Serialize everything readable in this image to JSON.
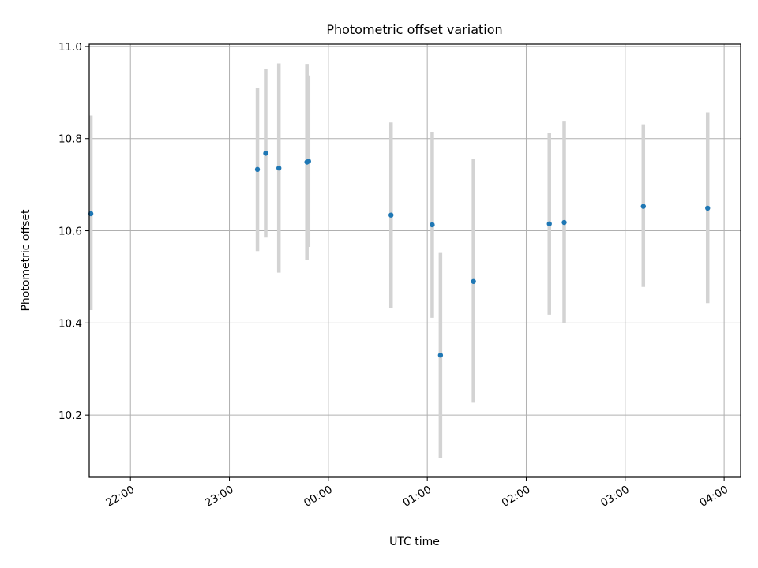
{
  "chart_data": {
    "type": "scatter",
    "title": "Photometric offset variation",
    "xlabel": "UTC time",
    "ylabel": "Photometric offset",
    "xlim": [
      "21:35",
      "04:10"
    ],
    "ylim": [
      10.065,
      11.005
    ],
    "grid": true,
    "colors": {
      "point": "#1f77b4",
      "errorbar": "#d3d3d3",
      "grid": "#b0b0b0"
    },
    "x_ticks": [
      "22:00",
      "23:00",
      "00:00",
      "01:00",
      "02:00",
      "03:00",
      "04:00"
    ],
    "y_ticks": [
      "10.2",
      "10.4",
      "10.6",
      "10.8",
      "11.0"
    ],
    "points": [
      {
        "x": "21:36",
        "y": 10.637,
        "y_low": 10.428,
        "y_high": 10.85
      },
      {
        "x": "23:17",
        "y": 10.733,
        "y_low": 10.556,
        "y_high": 10.91
      },
      {
        "x": "23:22",
        "y": 10.768,
        "y_low": 10.585,
        "y_high": 10.952
      },
      {
        "x": "23:30",
        "y": 10.736,
        "y_low": 10.509,
        "y_high": 10.963
      },
      {
        "x": "23:47",
        "y": 10.749,
        "y_low": 10.536,
        "y_high": 10.962
      },
      {
        "x": "23:48",
        "y": 10.751,
        "y_low": 10.565,
        "y_high": 10.937
      },
      {
        "x": "00:38",
        "y": 10.634,
        "y_low": 10.432,
        "y_high": 10.835
      },
      {
        "x": "01:03",
        "y": 10.613,
        "y_low": 10.411,
        "y_high": 10.815
      },
      {
        "x": "01:08",
        "y": 10.33,
        "y_low": 10.107,
        "y_high": 10.552
      },
      {
        "x": "01:28",
        "y": 10.49,
        "y_low": 10.227,
        "y_high": 10.755
      },
      {
        "x": "02:14",
        "y": 10.615,
        "y_low": 10.418,
        "y_high": 10.813
      },
      {
        "x": "02:23",
        "y": 10.618,
        "y_low": 10.399,
        "y_high": 10.837
      },
      {
        "x": "03:11",
        "y": 10.653,
        "y_low": 10.478,
        "y_high": 10.831
      },
      {
        "x": "03:50",
        "y": 10.649,
        "y_low": 10.443,
        "y_high": 10.857
      }
    ]
  }
}
